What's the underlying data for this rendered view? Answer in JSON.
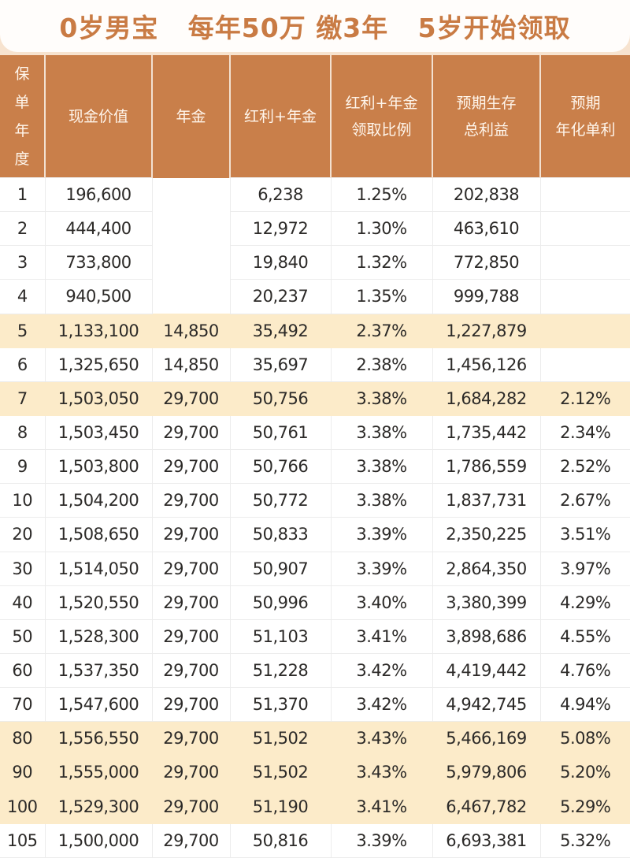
{
  "title": "0岁男宝   每年50万 缴3年   5岁开始领取",
  "headers": [
    "保单年度",
    "现金价值",
    "年金",
    "红利+年金",
    "红利+年金\n领取比例",
    "预期生存\n总利益",
    "预期\n年化单利"
  ],
  "colors": {
    "header_bg": "#c97f4a",
    "highlight_row": "#fcebc9",
    "title": "#c97b44"
  },
  "rows": [
    {
      "year": "1",
      "cash_value": "196,600",
      "annuity": "",
      "bonus_annuity": "6,238",
      "ratio": "1.25%",
      "total_benefit": "202,838",
      "annual_simple": "",
      "highlight": false
    },
    {
      "year": "2",
      "cash_value": "444,400",
      "annuity": "",
      "bonus_annuity": "12,972",
      "ratio": "1.30%",
      "total_benefit": "463,610",
      "annual_simple": "",
      "highlight": false
    },
    {
      "year": "3",
      "cash_value": "733,800",
      "annuity": "",
      "bonus_annuity": "19,840",
      "ratio": "1.32%",
      "total_benefit": "772,850",
      "annual_simple": "",
      "highlight": false
    },
    {
      "year": "4",
      "cash_value": "940,500",
      "annuity": "",
      "bonus_annuity": "20,237",
      "ratio": "1.35%",
      "total_benefit": "999,788",
      "annual_simple": "",
      "highlight": false
    },
    {
      "year": "5",
      "cash_value": "1,133,100",
      "annuity": "14,850",
      "bonus_annuity": "35,492",
      "ratio": "2.37%",
      "total_benefit": "1,227,879",
      "annual_simple": "",
      "highlight": true
    },
    {
      "year": "6",
      "cash_value": "1,325,650",
      "annuity": "14,850",
      "bonus_annuity": "35,697",
      "ratio": "2.38%",
      "total_benefit": "1,456,126",
      "annual_simple": "",
      "highlight": false
    },
    {
      "year": "7",
      "cash_value": "1,503,050",
      "annuity": "29,700",
      "bonus_annuity": "50,756",
      "ratio": "3.38%",
      "total_benefit": "1,684,282",
      "annual_simple": "2.12%",
      "highlight": true
    },
    {
      "year": "8",
      "cash_value": "1,503,450",
      "annuity": "29,700",
      "bonus_annuity": "50,761",
      "ratio": "3.38%",
      "total_benefit": "1,735,442",
      "annual_simple": "2.34%",
      "highlight": false
    },
    {
      "year": "9",
      "cash_value": "1,503,800",
      "annuity": "29,700",
      "bonus_annuity": "50,766",
      "ratio": "3.38%",
      "total_benefit": "1,786,559",
      "annual_simple": "2.52%",
      "highlight": false
    },
    {
      "year": "10",
      "cash_value": "1,504,200",
      "annuity": "29,700",
      "bonus_annuity": "50,772",
      "ratio": "3.38%",
      "total_benefit": "1,837,731",
      "annual_simple": "2.67%",
      "highlight": false
    },
    {
      "year": "20",
      "cash_value": "1,508,650",
      "annuity": "29,700",
      "bonus_annuity": "50,833",
      "ratio": "3.39%",
      "total_benefit": "2,350,225",
      "annual_simple": "3.51%",
      "highlight": false
    },
    {
      "year": "30",
      "cash_value": "1,514,050",
      "annuity": "29,700",
      "bonus_annuity": "50,907",
      "ratio": "3.39%",
      "total_benefit": "2,864,350",
      "annual_simple": "3.97%",
      "highlight": false
    },
    {
      "year": "40",
      "cash_value": "1,520,550",
      "annuity": "29,700",
      "bonus_annuity": "50,996",
      "ratio": "3.40%",
      "total_benefit": "3,380,399",
      "annual_simple": "4.29%",
      "highlight": false
    },
    {
      "year": "50",
      "cash_value": "1,528,300",
      "annuity": "29,700",
      "bonus_annuity": "51,103",
      "ratio": "3.41%",
      "total_benefit": "3,898,686",
      "annual_simple": "4.55%",
      "highlight": false
    },
    {
      "year": "60",
      "cash_value": "1,537,350",
      "annuity": "29,700",
      "bonus_annuity": "51,228",
      "ratio": "3.42%",
      "total_benefit": "4,419,442",
      "annual_simple": "4.76%",
      "highlight": false
    },
    {
      "year": "70",
      "cash_value": "1,547,600",
      "annuity": "29,700",
      "bonus_annuity": "51,370",
      "ratio": "3.42%",
      "total_benefit": "4,942,745",
      "annual_simple": "4.94%",
      "highlight": false
    },
    {
      "year": "80",
      "cash_value": "1,556,550",
      "annuity": "29,700",
      "bonus_annuity": "51,502",
      "ratio": "3.43%",
      "total_benefit": "5,466,169",
      "annual_simple": "5.08%",
      "highlight": true
    },
    {
      "year": "90",
      "cash_value": "1,555,000",
      "annuity": "29,700",
      "bonus_annuity": "51,502",
      "ratio": "3.43%",
      "total_benefit": "5,979,806",
      "annual_simple": "5.20%",
      "highlight": true
    },
    {
      "year": "100",
      "cash_value": "1,529,300",
      "annuity": "29,700",
      "bonus_annuity": "51,190",
      "ratio": "3.41%",
      "total_benefit": "6,467,782",
      "annual_simple": "5.29%",
      "highlight": true
    },
    {
      "year": "105",
      "cash_value": "1,500,000",
      "annuity": "29,700",
      "bonus_annuity": "50,816",
      "ratio": "3.39%",
      "total_benefit": "6,693,381",
      "annual_simple": "5.32%",
      "highlight": false
    }
  ]
}
